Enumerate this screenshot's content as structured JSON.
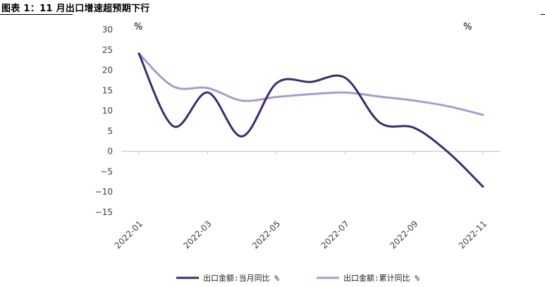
{
  "header": {
    "title": "图表 1：11 月出口增速超预期下行"
  },
  "chart_data": {
    "type": "line",
    "title": "",
    "xlabel": "",
    "ylabel": "",
    "unit_left": "%",
    "unit_right": "%",
    "ylim": [
      -15,
      30
    ],
    "yticks": [
      30,
      25,
      20,
      15,
      10,
      5,
      0,
      -5,
      -10,
      -15
    ],
    "yticks_labels": [
      "30",
      "25",
      "20",
      "15",
      "10",
      "5",
      "0",
      "−5",
      "−10",
      "−15"
    ],
    "x": [
      "2022-01",
      "2022-02",
      "2022-03",
      "2022-04",
      "2022-05",
      "2022-06",
      "2022-07",
      "2022-08",
      "2022-09",
      "2022-10",
      "2022-11"
    ],
    "xticks": [
      "2022-01",
      "2022-03",
      "2022-05",
      "2022-07",
      "2022-09",
      "2022-11"
    ],
    "series": [
      {
        "name": "出口金额:当月同比  %",
        "color": "#3f2a6b",
        "values": [
          24.1,
          6.2,
          14.5,
          3.7,
          16.8,
          17.1,
          18.1,
          7.1,
          5.8,
          -0.3,
          -8.7
        ]
      },
      {
        "name": "出口金额:累计同比  %",
        "color": "#a99bcb",
        "values": [
          24.1,
          16.0,
          15.6,
          12.5,
          13.4,
          14.1,
          14.5,
          13.5,
          12.5,
          11.1,
          9.0
        ]
      }
    ],
    "legend_position": "bottom",
    "grid": false
  }
}
